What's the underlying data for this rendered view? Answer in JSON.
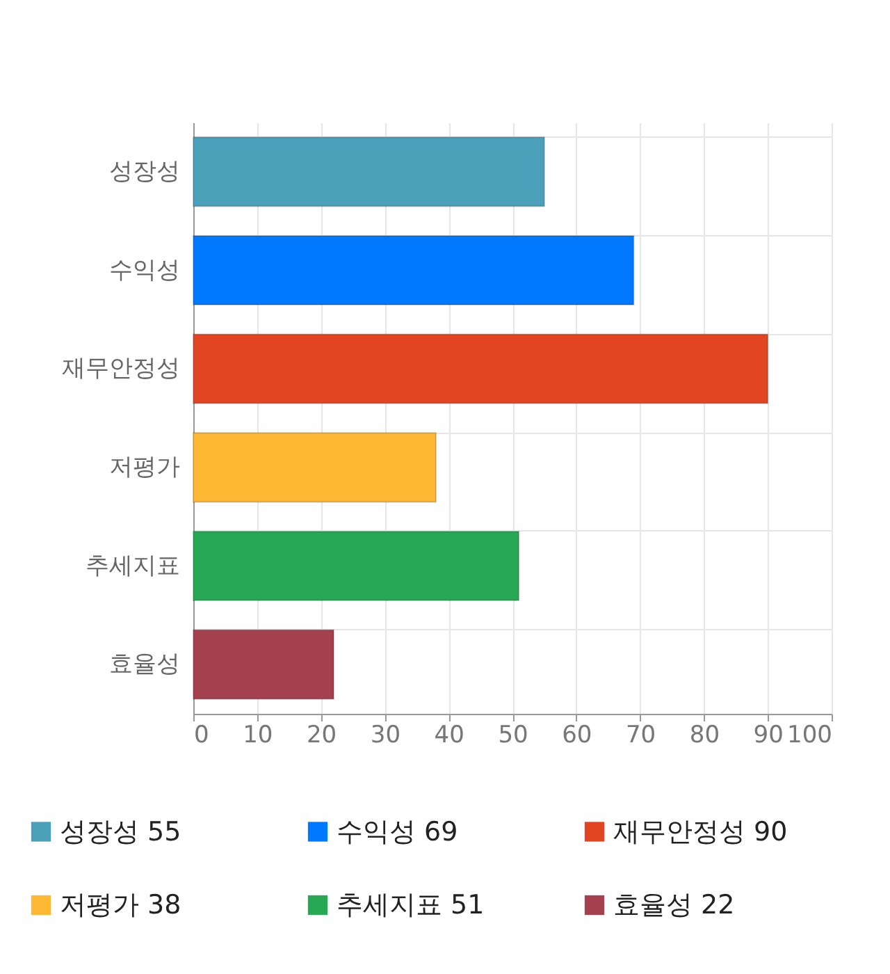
{
  "chart_data": {
    "type": "bar",
    "orientation": "horizontal",
    "stacked": true,
    "categories": [
      "성장성",
      "수익성",
      "재무안정성",
      "저평가",
      "추세지표",
      "효율성"
    ],
    "series": [
      {
        "name": "성장성 55",
        "color": "#4aa0b9",
        "values": [
          55,
          null,
          null,
          null,
          null,
          null
        ]
      },
      {
        "name": "수익성 69",
        "color": "#0079ff",
        "values": [
          null,
          69,
          null,
          null,
          null,
          null
        ]
      },
      {
        "name": "재무안정성 90",
        "color": "#e24522",
        "values": [
          null,
          null,
          90,
          null,
          null,
          null
        ]
      },
      {
        "name": "저평가 38",
        "color": "#ffb833",
        "values": [
          null,
          null,
          null,
          38,
          null,
          null
        ]
      },
      {
        "name": "추세지표 51",
        "color": "#27a854",
        "values": [
          null,
          null,
          null,
          null,
          51,
          null
        ]
      },
      {
        "name": "효율성 22",
        "color": "#a5404f",
        "values": [
          null,
          null,
          null,
          null,
          null,
          22
        ]
      }
    ],
    "xlim": [
      0,
      100
    ],
    "xticks": [
      0,
      10,
      20,
      30,
      40,
      50,
      60,
      70,
      80,
      90,
      100
    ],
    "grid": true,
    "legend": "bottom"
  }
}
